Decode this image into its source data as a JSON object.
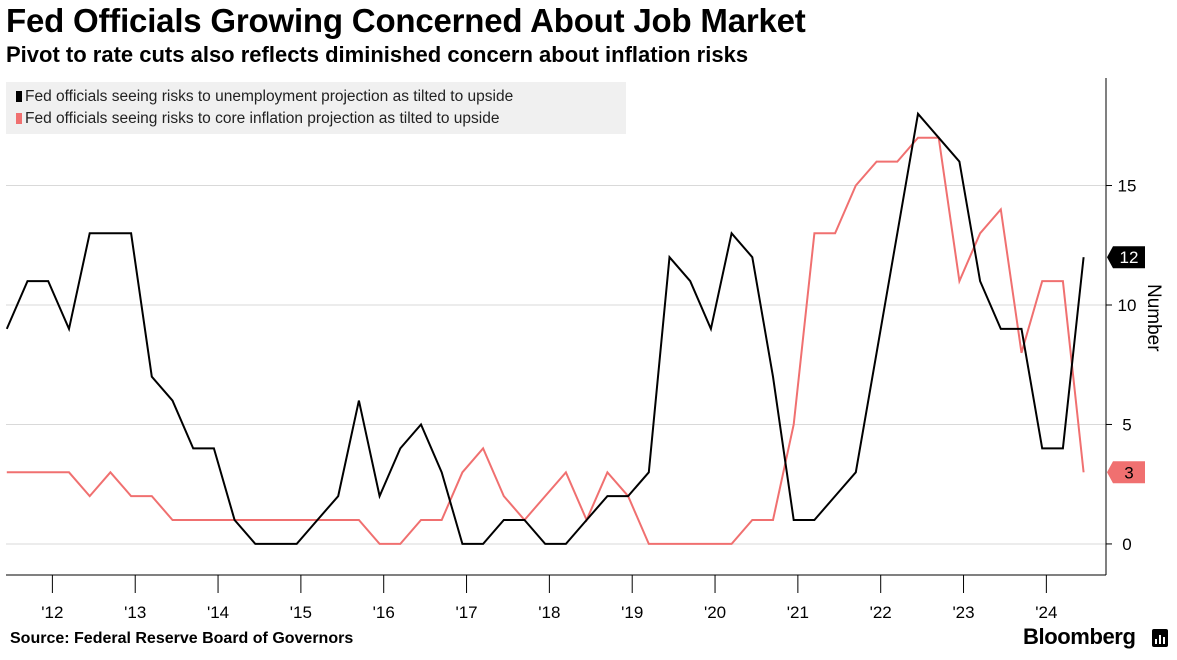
{
  "title": "Fed Officials Growing Concerned About Job Market",
  "subtitle": "Pivot to rate cuts also reflects diminished concern about inflation risks",
  "source": "Source: Federal Reserve Board of Governors",
  "brand": "Bloomberg",
  "colors": {
    "unemployment": "#000000",
    "inflation": "#f07070",
    "axis": "#000000",
    "grid": "#d9d9d9",
    "legend_bg": "#f0f0f0"
  },
  "chart_data": {
    "type": "line",
    "ylabel": "Number",
    "ylim": [
      -1.3,
      19.5
    ],
    "xlim": [
      2011.44,
      2024.72
    ],
    "y_ticks": [
      0,
      5,
      10,
      15
    ],
    "x_tick_labels": [
      "'12",
      "'13",
      "'14",
      "'15",
      "'16",
      "'17",
      "'18",
      "'19",
      "'20",
      "'21",
      "'22",
      "'23",
      "'24"
    ],
    "x_tick_years": [
      2012,
      2013,
      2014,
      2015,
      2016,
      2017,
      2018,
      2019,
      2020,
      2021,
      2022,
      2023,
      2024
    ],
    "grid": "horizontal",
    "legend_position": "top-left",
    "series": [
      {
        "name": "Fed officials seeing risks to unemployment projection as tilted to upside",
        "color_key": "unemployment",
        "end_label": "12",
        "x": [
          2011.45,
          2011.7,
          2011.95,
          2012.2,
          2012.45,
          2012.7,
          2012.95,
          2013.2,
          2013.45,
          2013.7,
          2013.95,
          2014.2,
          2014.45,
          2014.7,
          2014.95,
          2015.2,
          2015.45,
          2015.7,
          2015.95,
          2016.2,
          2016.45,
          2016.7,
          2016.95,
          2017.2,
          2017.45,
          2017.7,
          2017.95,
          2018.2,
          2018.45,
          2018.7,
          2018.95,
          2019.2,
          2019.45,
          2019.7,
          2019.95,
          2020.2,
          2020.45,
          2020.7,
          2020.95,
          2021.2,
          2021.45,
          2021.7,
          2021.95,
          2022.2,
          2022.45,
          2022.7,
          2022.95,
          2023.2,
          2023.45,
          2023.7,
          2023.95,
          2024.2,
          2024.45
        ],
        "values": [
          9,
          11,
          11,
          9,
          13,
          13,
          13,
          7,
          6,
          4,
          4,
          1,
          0,
          0,
          0,
          1,
          2,
          6,
          2,
          4,
          5,
          3,
          0,
          0,
          1,
          1,
          0,
          0,
          1,
          2,
          2,
          3,
          12,
          11,
          9,
          13,
          12,
          7,
          1,
          1,
          2,
          3,
          8,
          13,
          18,
          17,
          16,
          11,
          9,
          9,
          4,
          4,
          12
        ]
      },
      {
        "name": "Fed officials seeing risks to core inflation projection as tilted to upside",
        "color_key": "inflation",
        "end_label": "3",
        "x": [
          2011.45,
          2011.7,
          2011.95,
          2012.2,
          2012.45,
          2012.7,
          2012.95,
          2013.2,
          2013.45,
          2013.7,
          2013.95,
          2014.2,
          2014.45,
          2014.7,
          2014.95,
          2015.2,
          2015.45,
          2015.7,
          2015.95,
          2016.2,
          2016.45,
          2016.7,
          2016.95,
          2017.2,
          2017.45,
          2017.7,
          2017.95,
          2018.2,
          2018.45,
          2018.7,
          2018.95,
          2019.2,
          2019.45,
          2019.7,
          2019.95,
          2020.2,
          2020.45,
          2020.7,
          2020.95,
          2021.2,
          2021.45,
          2021.7,
          2021.95,
          2022.2,
          2022.45,
          2022.7,
          2022.95,
          2023.2,
          2023.45,
          2023.7,
          2023.95,
          2024.2,
          2024.45
        ],
        "values": [
          3,
          3,
          3,
          3,
          2,
          3,
          2,
          2,
          1,
          1,
          1,
          1,
          1,
          1,
          1,
          1,
          1,
          1,
          0,
          0,
          1,
          1,
          3,
          4,
          2,
          1,
          2,
          3,
          1,
          3,
          2,
          0,
          0,
          0,
          0,
          0,
          1,
          1,
          5,
          13,
          13,
          15,
          16,
          16,
          17,
          17,
          11,
          13,
          14,
          8,
          11,
          11,
          3
        ]
      }
    ]
  }
}
